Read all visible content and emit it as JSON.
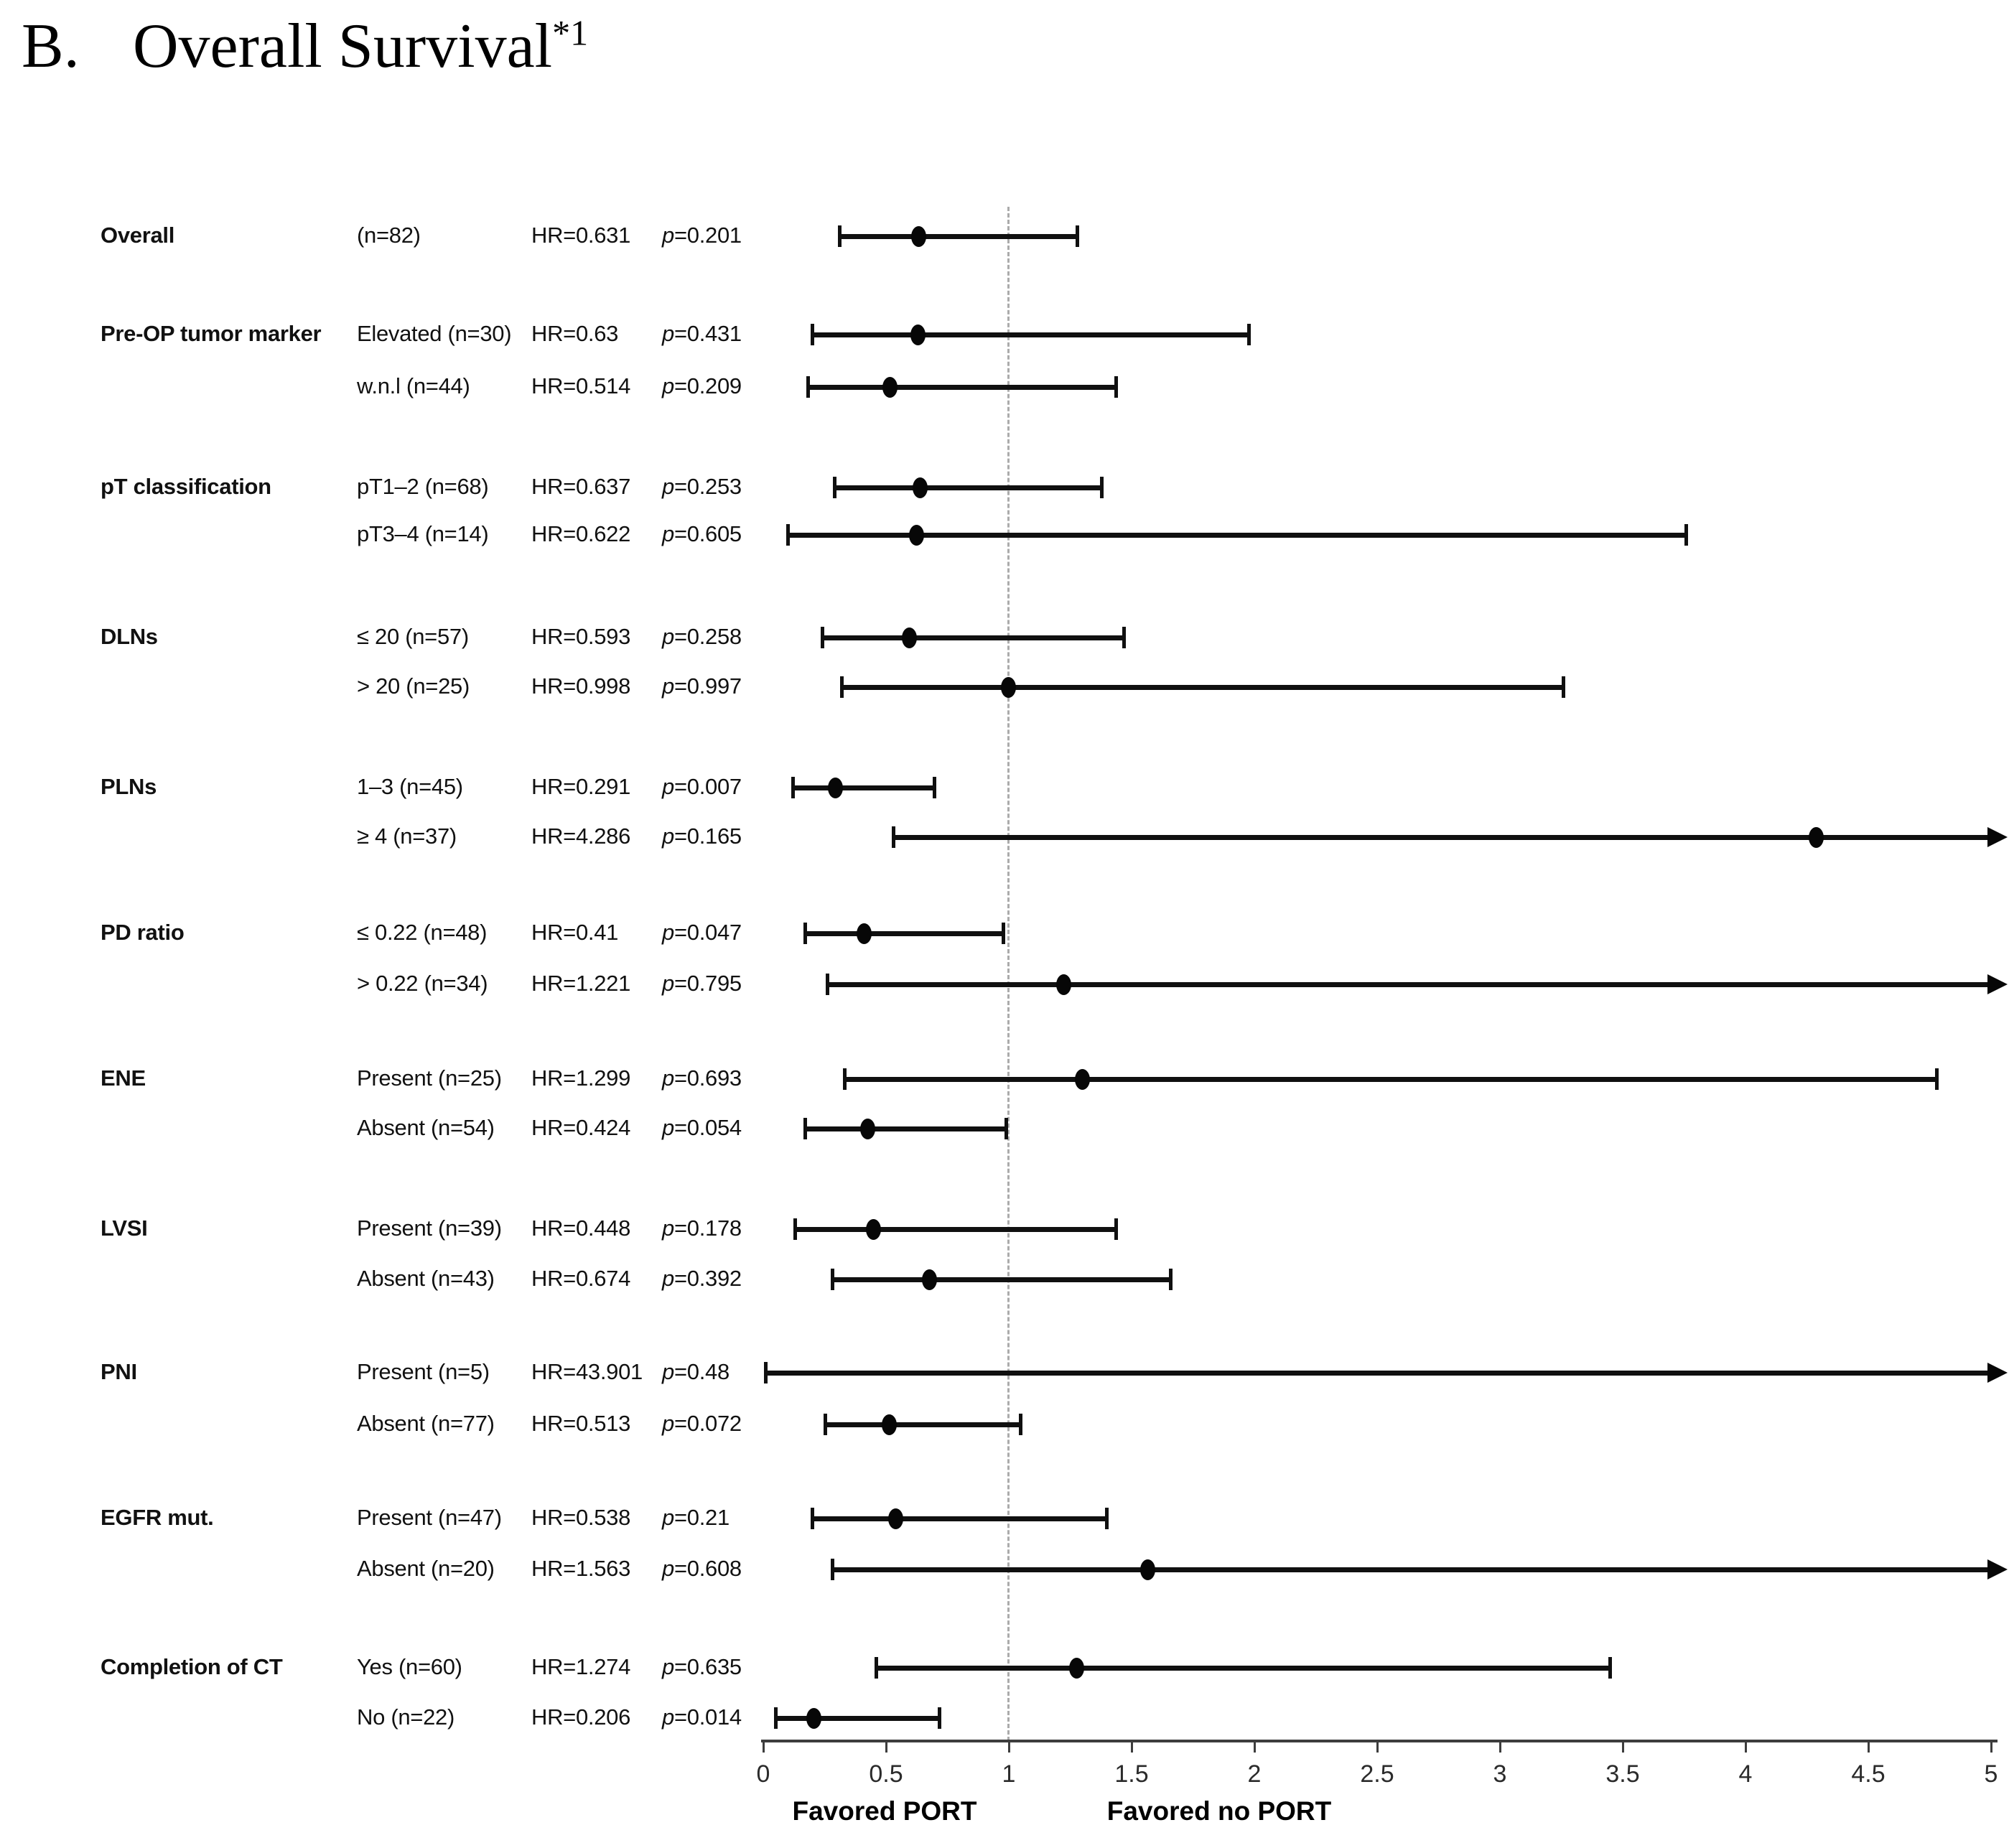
{
  "title": {
    "index": "B.",
    "text": "Overall Survival",
    "superscript": "*1"
  },
  "chart_data": {
    "type": "forest",
    "title": "Overall Survival",
    "xlabel_left": "Favored PORT",
    "xlabel_right": "Favored no PORT",
    "axis": {
      "min": 0,
      "max": 5,
      "step": 0.5,
      "ticks": [
        0,
        0.5,
        1,
        1.5,
        2,
        2.5,
        3,
        3.5,
        4,
        4.5,
        5
      ],
      "tick_labels": [
        "0",
        "0.5",
        "1",
        "1.5",
        "2",
        "2.5",
        "3",
        "3.5",
        "4",
        "4.5",
        "5"
      ],
      "reference_line": 1,
      "grid": false
    },
    "columns": [
      "group",
      "subgroup",
      "hazard_ratio",
      "p_value"
    ],
    "rows": [
      {
        "group": "Overall",
        "subgroup": "(n=82)",
        "hr_label": "HR=0.631",
        "p_label": "p=0.201",
        "hr": 0.631,
        "ci_low": 0.31,
        "ci_high": 1.28,
        "arrow_high": false,
        "show_point": true
      },
      {
        "group": "Pre-OP tumor marker",
        "subgroup": "Elevated (n=30)",
        "hr_label": "HR=0.63",
        "p_label": "p=0.431",
        "hr": 0.63,
        "ci_low": 0.2,
        "ci_high": 1.98,
        "arrow_high": false,
        "show_point": true
      },
      {
        "group": "",
        "subgroup": "w.n.l (n=44)",
        "hr_label": "HR=0.514",
        "p_label": "p=0.209",
        "hr": 0.514,
        "ci_low": 0.18,
        "ci_high": 1.44,
        "arrow_high": false,
        "show_point": true
      },
      {
        "group": "pT classification",
        "subgroup": "pT1–2 (n=68)",
        "hr_label": "HR=0.637",
        "p_label": "p=0.253",
        "hr": 0.637,
        "ci_low": 0.29,
        "ci_high": 1.38,
        "arrow_high": false,
        "show_point": true
      },
      {
        "group": "",
        "subgroup": "pT3–4 (n=14)",
        "hr_label": "HR=0.622",
        "p_label": "p=0.605",
        "hr": 0.622,
        "ci_low": 0.1,
        "ci_high": 3.76,
        "arrow_high": false,
        "show_point": true
      },
      {
        "group": "DLNs",
        "subgroup": "≤ 20 (n=57)",
        "hr_label": "HR=0.593",
        "p_label": "p=0.258",
        "hr": 0.593,
        "ci_low": 0.24,
        "ci_high": 1.47,
        "arrow_high": false,
        "show_point": true
      },
      {
        "group": "",
        "subgroup": "> 20 (n=25)",
        "hr_label": "HR=0.998",
        "p_label": "p=0.997",
        "hr": 0.998,
        "ci_low": 0.32,
        "ci_high": 3.26,
        "arrow_high": false,
        "show_point": true
      },
      {
        "group": "PLNs",
        "subgroup": "1–3 (n=45)",
        "hr_label": "HR=0.291",
        "p_label": "p=0.007",
        "hr": 0.291,
        "ci_low": 0.12,
        "ci_high": 0.7,
        "arrow_high": false,
        "show_point": true
      },
      {
        "group": "",
        "subgroup": "≥ 4 (n=37)",
        "hr_label": "HR=4.286",
        "p_label": "p=0.165",
        "hr": 4.286,
        "ci_low": 0.53,
        "ci_high": null,
        "arrow_high": true,
        "show_point": true
      },
      {
        "group": "PD ratio",
        "subgroup": "≤ 0.22 (n=48)",
        "hr_label": "HR=0.41",
        "p_label": "p=0.047",
        "hr": 0.41,
        "ci_low": 0.17,
        "ci_high": 0.98,
        "arrow_high": false,
        "show_point": true
      },
      {
        "group": "",
        "subgroup": "> 0.22 (n=34)",
        "hr_label": "HR=1.221",
        "p_label": "p=0.795",
        "hr": 1.221,
        "ci_low": 0.26,
        "ci_high": null,
        "arrow_high": true,
        "show_point": true
      },
      {
        "group": "ENE",
        "subgroup": "Present (n=25)",
        "hr_label": "HR=1.299",
        "p_label": "p=0.693",
        "hr": 1.299,
        "ci_low": 0.33,
        "ci_high": 4.78,
        "arrow_high": false,
        "show_point": true
      },
      {
        "group": "",
        "subgroup": "Absent (n=54)",
        "hr_label": "HR=0.424",
        "p_label": "p=0.054",
        "hr": 0.424,
        "ci_low": 0.17,
        "ci_high": 0.99,
        "arrow_high": false,
        "show_point": true
      },
      {
        "group": "LVSI",
        "subgroup": "Present (n=39)",
        "hr_label": "HR=0.448",
        "p_label": "p=0.178",
        "hr": 0.448,
        "ci_low": 0.13,
        "ci_high": 1.44,
        "arrow_high": false,
        "show_point": true
      },
      {
        "group": "",
        "subgroup": "Absent (n=43)",
        "hr_label": "HR=0.674",
        "p_label": "p=0.392",
        "hr": 0.674,
        "ci_low": 0.28,
        "ci_high": 1.66,
        "arrow_high": false,
        "show_point": true
      },
      {
        "group": "PNI",
        "subgroup": "Present (n=5)",
        "hr_label": "HR=43.901",
        "p_label": "p=0.48",
        "hr": 43.901,
        "ci_low": 0.01,
        "ci_high": null,
        "arrow_high": true,
        "show_point": false
      },
      {
        "group": "",
        "subgroup": "Absent (n=77)",
        "hr_label": "HR=0.513",
        "p_label": "p=0.072",
        "hr": 0.513,
        "ci_low": 0.25,
        "ci_high": 1.05,
        "arrow_high": false,
        "show_point": true
      },
      {
        "group": "EGFR mut.",
        "subgroup": "Present (n=47)",
        "hr_label": "HR=0.538",
        "p_label": "p=0.21",
        "hr": 0.538,
        "ci_low": 0.2,
        "ci_high": 1.4,
        "arrow_high": false,
        "show_point": true
      },
      {
        "group": "",
        "subgroup": "Absent (n=20)",
        "hr_label": "HR=1.563",
        "p_label": "p=0.608",
        "hr": 1.563,
        "ci_low": 0.28,
        "ci_high": null,
        "arrow_high": true,
        "show_point": true
      },
      {
        "group": "Completion of CT",
        "subgroup": "Yes (n=60)",
        "hr_label": "HR=1.274",
        "p_label": "p=0.635",
        "hr": 1.274,
        "ci_low": 0.46,
        "ci_high": 3.45,
        "arrow_high": false,
        "show_point": true
      },
      {
        "group": "",
        "subgroup": "No (n=22)",
        "hr_label": "HR=0.206",
        "p_label": "p=0.014",
        "hr": 0.206,
        "ci_low": 0.05,
        "ci_high": 0.72,
        "arrow_high": false,
        "show_point": true
      }
    ],
    "colors": {
      "marker": "#070707",
      "axis": "#3d3d3d",
      "reference_line": "#ababab",
      "text": "#111111"
    }
  }
}
